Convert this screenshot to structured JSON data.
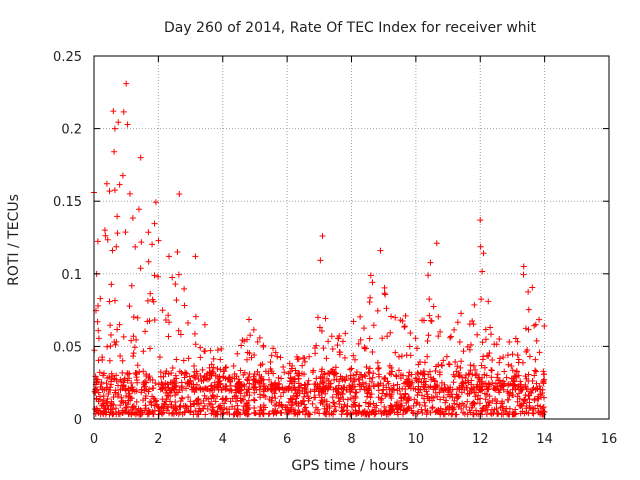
{
  "chart_data": {
    "type": "scatter",
    "title": "Day 260 of 2014, Rate Of TEC Index for receiver whit",
    "xlabel": "GPS time / hours",
    "ylabel": "ROTI / TECUs",
    "xlim": [
      0,
      16
    ],
    "ylim": [
      0,
      0.25
    ],
    "xticks": [
      0,
      2,
      4,
      6,
      8,
      10,
      12,
      14,
      16
    ],
    "yticks": [
      0,
      0.05,
      0.1,
      0.15,
      0.2,
      0.25
    ],
    "ytick_labels": [
      "0",
      "0.05",
      "0.1",
      "0.15",
      "0.2",
      "0.25"
    ],
    "grid": true,
    "marker": "+",
    "color": "#ff0000",
    "series": [
      {
        "name": "ROTI",
        "notable_points": [
          {
            "x": 1.0,
            "y": 0.231
          },
          {
            "x": 0.6,
            "y": 0.212
          },
          {
            "x": 0.65,
            "y": 0.2
          },
          {
            "x": 1.45,
            "y": 0.18
          },
          {
            "x": 0.0,
            "y": 0.156
          },
          {
            "x": 2.65,
            "y": 0.155
          },
          {
            "x": 0.4,
            "y": 0.162
          },
          {
            "x": 7.1,
            "y": 0.126
          },
          {
            "x": 12.0,
            "y": 0.137
          },
          {
            "x": 10.65,
            "y": 0.121
          },
          {
            "x": 8.9,
            "y": 0.116
          },
          {
            "x": 13.35,
            "y": 0.105
          },
          {
            "x": 3.15,
            "y": 0.112
          }
        ],
        "envelope_x": [
          0,
          0.25,
          0.5,
          0.75,
          1.0,
          1.25,
          1.5,
          1.75,
          2.0,
          2.25,
          2.5,
          2.75,
          3.0,
          3.25,
          3.5,
          3.75,
          4.0,
          4.25,
          4.5,
          4.75,
          5.0,
          5.25,
          5.5,
          5.75,
          6.0,
          6.25,
          6.5,
          6.75,
          7.0,
          7.25,
          7.5,
          7.75,
          8.0,
          8.25,
          8.5,
          8.75,
          9.0,
          9.25,
          9.5,
          9.75,
          10.0,
          10.25,
          10.5,
          10.75,
          11.0,
          11.25,
          11.5,
          11.75,
          12.0,
          12.25,
          12.5,
          12.75,
          13.0,
          13.25,
          13.5,
          13.75,
          14.0
        ],
        "envelope_ymax": [
          0.15,
          0.12,
          0.16,
          0.21,
          0.23,
          0.14,
          0.18,
          0.14,
          0.155,
          0.12,
          0.15,
          0.11,
          0.11,
          0.09,
          0.06,
          0.05,
          0.05,
          0.045,
          0.06,
          0.07,
          0.065,
          0.055,
          0.05,
          0.045,
          0.04,
          0.045,
          0.045,
          0.05,
          0.125,
          0.06,
          0.055,
          0.06,
          0.07,
          0.075,
          0.09,
          0.115,
          0.1,
          0.085,
          0.08,
          0.07,
          0.075,
          0.09,
          0.12,
          0.08,
          0.075,
          0.065,
          0.085,
          0.1,
          0.135,
          0.09,
          0.06,
          0.06,
          0.08,
          0.1,
          0.105,
          0.09,
          0.07
        ]
      }
    ]
  }
}
